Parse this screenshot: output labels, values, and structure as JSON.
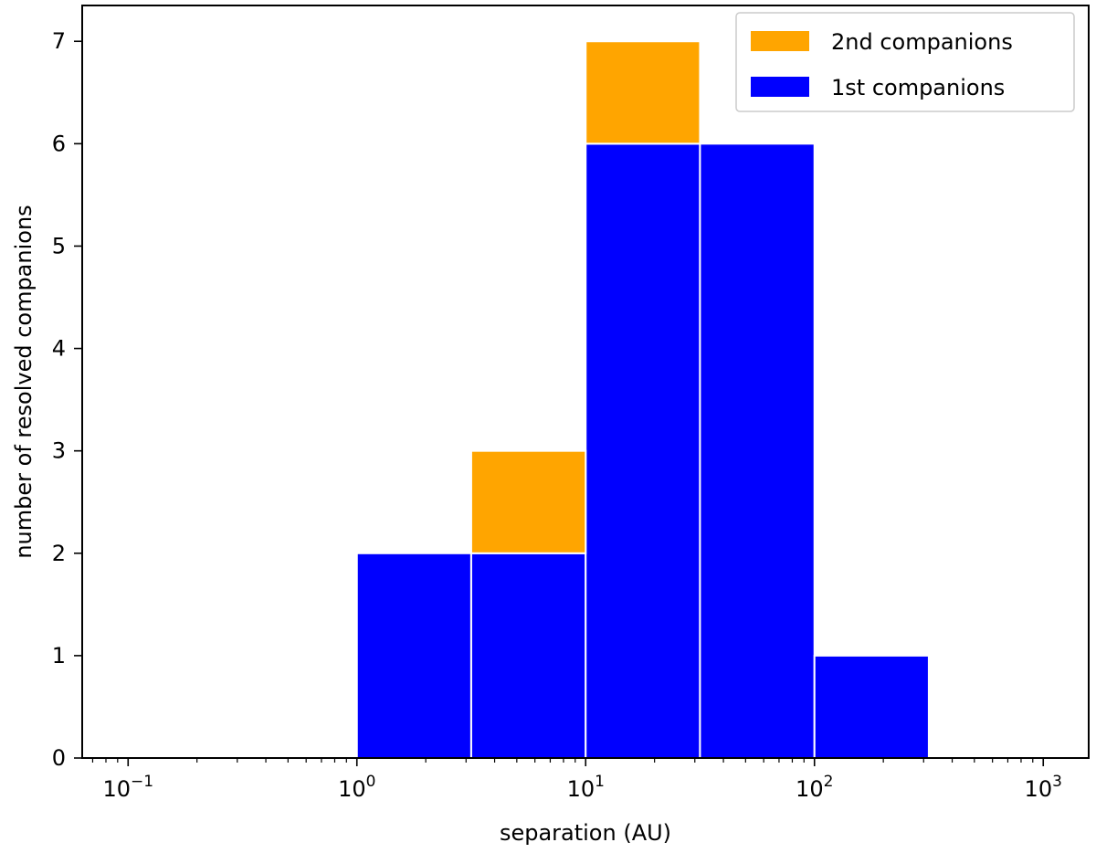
{
  "chart_data": {
    "type": "bar",
    "stacked": true,
    "x_scale": "log",
    "bin_edges": [
      1,
      3.16,
      10,
      31.6,
      100,
      316
    ],
    "series": [
      {
        "name": "1st companions",
        "values": [
          2,
          2,
          6,
          6,
          1
        ],
        "color": "#0000ff"
      },
      {
        "name": "2nd companions",
        "values": [
          0,
          1,
          1,
          0,
          0
        ],
        "color": "#ffa500"
      }
    ],
    "xlabel": "separation (AU)",
    "ylabel": "number of resolved companions",
    "xlim": [
      0.063,
      1580
    ],
    "ylim": [
      0,
      7.35
    ],
    "x_ticks": [
      {
        "value": 0.1,
        "base": "10",
        "exp": "−1"
      },
      {
        "value": 1,
        "base": "10",
        "exp": "0"
      },
      {
        "value": 10,
        "base": "10",
        "exp": "1"
      },
      {
        "value": 100,
        "base": "10",
        "exp": "2"
      },
      {
        "value": 1000,
        "base": "10",
        "exp": "3"
      }
    ],
    "y_ticks": [
      0,
      1,
      2,
      3,
      4,
      5,
      6,
      7
    ],
    "legend": {
      "position": "top-right",
      "entries": [
        {
          "label": "2nd companions",
          "color": "#ffa500"
        },
        {
          "label": "1st companions",
          "color": "#0000ff"
        }
      ]
    },
    "grid": false
  }
}
